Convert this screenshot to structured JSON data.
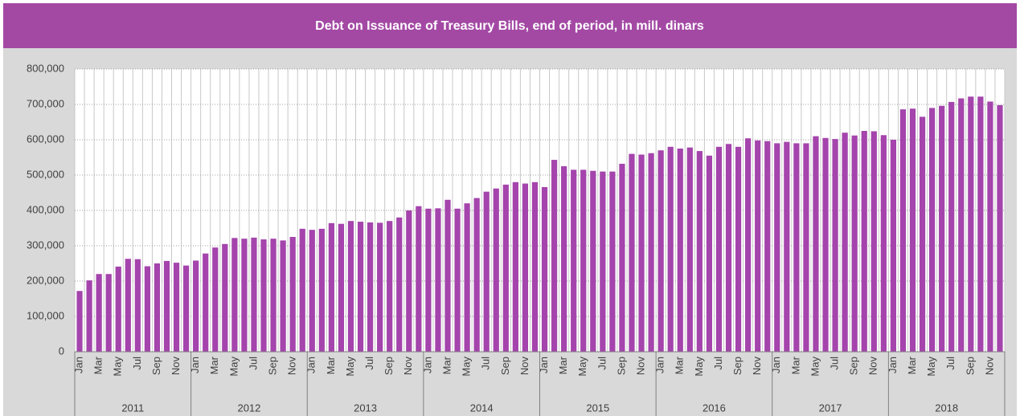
{
  "chart_data": {
    "type": "bar",
    "title": "Debt on Issuance of Treasury Bills, end of period, in mill. dinars",
    "categories": [
      "Jan",
      null,
      "Mar",
      null,
      "May",
      null,
      "Jul",
      null,
      "Sep",
      null,
      "Nov",
      null,
      "Jan",
      null,
      "Mar",
      null,
      "May",
      null,
      "Jul",
      null,
      "Sep",
      null,
      "Nov",
      null,
      "Jan",
      null,
      "Mar",
      null,
      "May",
      null,
      "Jul",
      null,
      "Sep",
      null,
      "Nov",
      null,
      "Jan",
      null,
      "Mar",
      null,
      "May",
      null,
      "Jul",
      null,
      "Sep",
      null,
      "Nov",
      null,
      "Jan",
      null,
      "Mar",
      null,
      "May",
      null,
      "Jul",
      null,
      "Sep",
      null,
      "Nov",
      null,
      "Jan",
      null,
      "Mar",
      null,
      "May",
      null,
      "Jul",
      null,
      "Sep",
      null,
      "Nov",
      null,
      "Jan",
      null,
      "Mar",
      null,
      "May",
      null,
      "Jul",
      null,
      "Sep",
      null,
      "Nov",
      null,
      "Jan",
      null,
      "Mar",
      null,
      "May",
      null,
      "Jul",
      null,
      "Sep",
      null,
      "Nov",
      null
    ],
    "x_groups": [
      "2011",
      "2012",
      "2013",
      "2014",
      "2015",
      "2016",
      "2017",
      "2018"
    ],
    "values": [
      172000,
      202000,
      220000,
      220000,
      241000,
      263000,
      262000,
      242000,
      250000,
      257000,
      252000,
      244000,
      258000,
      278000,
      295000,
      305000,
      322000,
      320000,
      323000,
      318000,
      320000,
      315000,
      325000,
      348000,
      345000,
      348000,
      364000,
      362000,
      370000,
      368000,
      366000,
      365000,
      370000,
      380000,
      400000,
      412000,
      405000,
      406000,
      430000,
      405000,
      420000,
      435000,
      453000,
      462000,
      473000,
      480000,
      476000,
      480000,
      466000,
      543000,
      525000,
      515000,
      515000,
      512000,
      510000,
      510000,
      532000,
      560000,
      558000,
      562000,
      570000,
      580000,
      575000,
      578000,
      568000,
      555000,
      580000,
      588000,
      580000,
      604000,
      598000,
      596000,
      590000,
      594000,
      590000,
      590000,
      610000,
      605000,
      602000,
      620000,
      612000,
      625000,
      624000,
      613000,
      600000,
      686000,
      688000,
      665000,
      690000,
      696000,
      707000,
      717000,
      722000,
      722000,
      708000,
      698000
    ],
    "color": "#a444ac",
    "ylim": [
      0,
      800000
    ],
    "yticks": [
      0,
      {
        "value": 100000,
        "label": "100,000"
      },
      {
        "value": 200000,
        "label": "200,000"
      },
      {
        "value": 300000,
        "label": "300,000"
      },
      {
        "value": 400000,
        "label": "400,000"
      },
      {
        "value": 500000,
        "label": "500,000"
      },
      {
        "value": 600000,
        "label": "600,000"
      },
      {
        "value": 700000,
        "label": "700,000"
      },
      {
        "value": 800000,
        "label": "800,000"
      }
    ],
    "grid": true
  }
}
